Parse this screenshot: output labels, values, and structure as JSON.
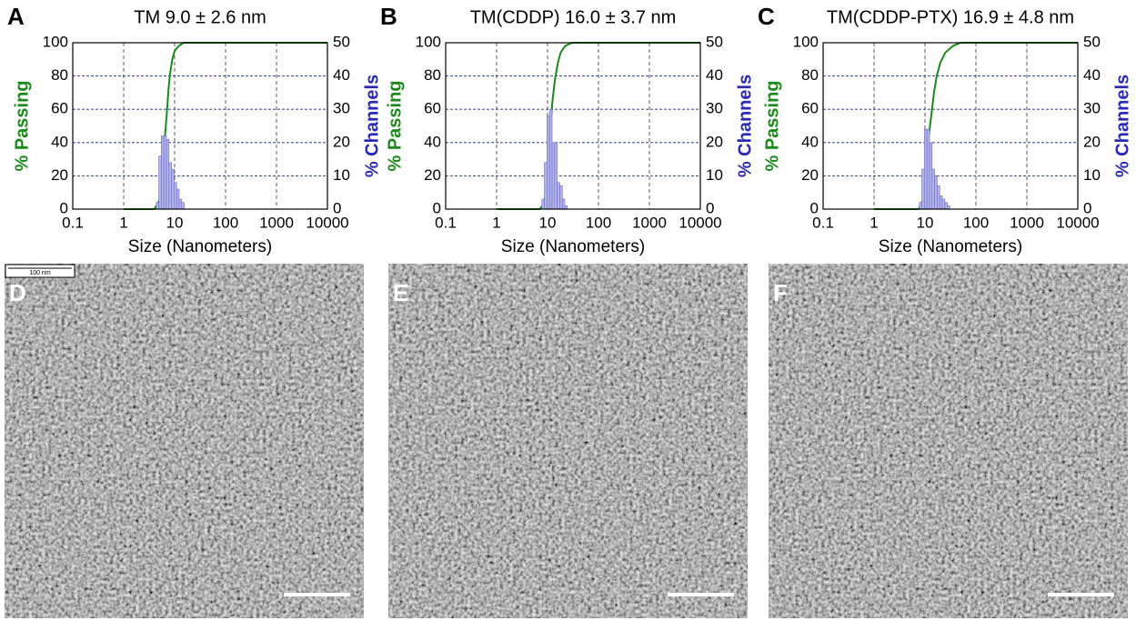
{
  "chart_data": [
    {
      "type": "combo",
      "panel": "A",
      "title": "TM  9.0 ± 2.6 nm",
      "xlabel": "Size (Nanometers)",
      "ylabel": "% Passing",
      "y2label": "% Channels",
      "xlog": true,
      "xlim": [
        0.1,
        10000
      ],
      "xticks": [
        0.1,
        1,
        10,
        100,
        1000,
        10000
      ],
      "ylim": [
        0,
        100
      ],
      "yticks": [
        0,
        20,
        40,
        60,
        80,
        100
      ],
      "y2lim": [
        0,
        50
      ],
      "y2ticks": [
        0,
        10,
        20,
        30,
        40,
        50
      ],
      "grid": true,
      "series": [
        {
          "kind": "line",
          "color": "#1a8a1a",
          "x": [
            1,
            4,
            5,
            5.5,
            6,
            6.5,
            7,
            7.5,
            8,
            9,
            10,
            12,
            15,
            10000
          ],
          "values": [
            0,
            0,
            5,
            15,
            30,
            45,
            57,
            70,
            80,
            90,
            95,
            98,
            100,
            100
          ]
        },
        {
          "kind": "bar",
          "axis": "y2",
          "color": "#b4b4ec",
          "x": [
            4.6,
            5.2,
            5.8,
            6.5,
            7.3,
            8.2,
            9.2,
            10.3,
            11.6,
            13,
            14.6
          ],
          "values": [
            2,
            16,
            22,
            22,
            21,
            14,
            12,
            8,
            6,
            3,
            2
          ]
        }
      ]
    },
    {
      "type": "combo",
      "panel": "B",
      "title": "TM(CDDP) 16.0 ± 3.7 nm",
      "xlabel": "Size (Nanometers)",
      "ylabel": "% Passing",
      "y2label": "% Channels",
      "xlog": true,
      "xlim": [
        0.1,
        10000
      ],
      "xticks": [
        0.1,
        1,
        10,
        100,
        1000,
        10000
      ],
      "ylim": [
        0,
        100
      ],
      "yticks": [
        0,
        20,
        40,
        60,
        80,
        100
      ],
      "y2lim": [
        0,
        50
      ],
      "y2ticks": [
        0,
        10,
        20,
        30,
        40,
        50
      ],
      "grid": true,
      "series": [
        {
          "kind": "line",
          "color": "#1a8a1a",
          "x": [
            1,
            7,
            8.5,
            9.5,
            10.5,
            11.5,
            12.5,
            14,
            16,
            18,
            22,
            30,
            10000
          ],
          "values": [
            0,
            0,
            3,
            12,
            30,
            50,
            65,
            78,
            88,
            94,
            98,
            100,
            100
          ]
        },
        {
          "kind": "bar",
          "axis": "y2",
          "color": "#b4b4ec",
          "x": [
            8.2,
            9.2,
            10.3,
            11.6,
            13,
            14.6,
            16.4,
            18.4,
            20.6,
            23
          ],
          "values": [
            3,
            14,
            28,
            30,
            20,
            20,
            8,
            7,
            3,
            1
          ]
        }
      ]
    },
    {
      "type": "combo",
      "panel": "C",
      "title": "TM(CDDP-PTX) 16.9 ± 4.8 nm",
      "xlabel": "Size (Nanometers)",
      "ylabel": "% Passing",
      "y2label": "% Channels",
      "xlog": true,
      "xlim": [
        0.1,
        10000
      ],
      "xticks": [
        0.1,
        1,
        10,
        100,
        1000,
        10000
      ],
      "ylim": [
        0,
        100
      ],
      "yticks": [
        0,
        20,
        40,
        60,
        80,
        100
      ],
      "y2lim": [
        0,
        50
      ],
      "y2ticks": [
        0,
        10,
        20,
        30,
        40,
        50
      ],
      "grid": true,
      "series": [
        {
          "kind": "line",
          "color": "#1a8a1a",
          "x": [
            1,
            7.5,
            9,
            10,
            11,
            12,
            13.5,
            15,
            17,
            20,
            25,
            35,
            50,
            10000
          ],
          "values": [
            0,
            0,
            5,
            15,
            30,
            45,
            58,
            70,
            80,
            88,
            94,
            98,
            100,
            100
          ]
        },
        {
          "kind": "bar",
          "axis": "y2",
          "color": "#b4b4ec",
          "x": [
            8.2,
            9.2,
            10.3,
            11.6,
            13,
            14.6,
            16.4,
            18.4,
            20.6,
            23,
            26,
            29
          ],
          "values": [
            2,
            12,
            24,
            24,
            20,
            12,
            10,
            7,
            4,
            3,
            2,
            1
          ]
        }
      ]
    }
  ],
  "images": [
    {
      "label": "D",
      "scale_text": "100 nm"
    },
    {
      "label": "E"
    },
    {
      "label": "F"
    }
  ]
}
